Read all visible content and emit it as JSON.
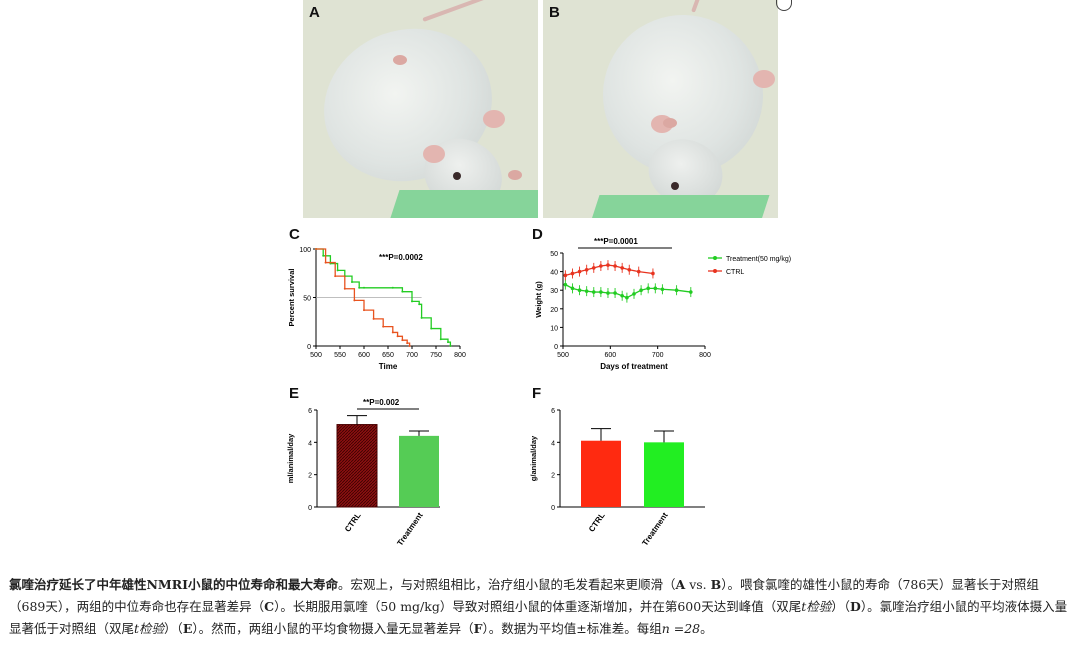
{
  "panels": {
    "A": "A",
    "B": "B",
    "C": "C",
    "D": "D",
    "E": "E",
    "F": "F"
  },
  "chart_data": [
    {
      "panel": "C",
      "type": "line",
      "xlabel": "Time",
      "ylabel": "Percent survival",
      "xlim": [
        500,
        800
      ],
      "ylim": [
        0,
        100
      ],
      "xticks": [
        500,
        550,
        600,
        650,
        700,
        750,
        800
      ],
      "yticks": [
        0,
        50,
        100
      ],
      "annotation": "***P=0.0002",
      "series": [
        {
          "color": "#22cc22",
          "x": [
            500,
            515,
            530,
            545,
            560,
            575,
            590,
            600,
            660,
            680,
            700,
            715,
            720,
            740,
            760,
            775,
            780
          ],
          "y": [
            100,
            93,
            85,
            78,
            72,
            66,
            60,
            60,
            60,
            56,
            46,
            43,
            29,
            18,
            7,
            4,
            0
          ]
        },
        {
          "color": "#e8531f",
          "x": [
            500,
            520,
            540,
            560,
            580,
            600,
            620,
            640,
            660,
            670,
            680,
            690,
            695
          ],
          "y": [
            100,
            86,
            72,
            59,
            47,
            37,
            28,
            20,
            14,
            10,
            6,
            3,
            0
          ]
        }
      ]
    },
    {
      "panel": "D",
      "type": "line",
      "xlabel": "Days of treatment",
      "ylabel": "Weight (g)",
      "xlim": [
        500,
        800
      ],
      "ylim": [
        0,
        50
      ],
      "xticks": [
        500,
        600,
        700,
        800
      ],
      "yticks": [
        0,
        10,
        20,
        30,
        40,
        50
      ],
      "annotation": "***P=0.0001",
      "legend": "top-right",
      "series": [
        {
          "name": "Treatment(50 mg/kg)",
          "color": "#22cc22",
          "x": [
            505,
            520,
            535,
            550,
            565,
            580,
            595,
            610,
            625,
            635,
            650,
            665,
            680,
            695,
            710,
            740,
            770
          ],
          "y": [
            33,
            31,
            30,
            29.5,
            29,
            29,
            28.5,
            28.5,
            27,
            26,
            28,
            30,
            31,
            31,
            30.5,
            30,
            29
          ]
        },
        {
          "name": "CTRL",
          "color": "#e8331f",
          "x": [
            505,
            520,
            535,
            550,
            565,
            580,
            595,
            610,
            625,
            640,
            660,
            690
          ],
          "y": [
            38,
            39,
            40,
            41,
            42,
            43,
            43.5,
            43,
            42,
            41,
            40,
            39
          ]
        }
      ]
    },
    {
      "panel": "E",
      "type": "bar",
      "ylabel": "ml/animal/day",
      "ylim": [
        0,
        6
      ],
      "yticks": [
        0,
        2,
        4,
        6
      ],
      "annotation": "**P=0.002",
      "categories": [
        "CTRL",
        "Treatment"
      ],
      "values": [
        5.1,
        4.4
      ],
      "errors": [
        0.55,
        0.3
      ],
      "colors": [
        "#8b1010",
        "#55cc55"
      ]
    },
    {
      "panel": "F",
      "type": "bar",
      "ylabel": "g/animal/day",
      "ylim": [
        0,
        6
      ],
      "yticks": [
        0,
        2,
        4,
        6
      ],
      "categories": [
        "CTRL",
        "Treatment"
      ],
      "values": [
        4.1,
        4.0
      ],
      "errors": [
        0.75,
        0.7
      ],
      "colors": [
        "#ff2a10",
        "#22ee22"
      ]
    }
  ],
  "caption": {
    "bold_lead": "氯喹治疗延长了中年雄性NMRI小鼠的中位寿命和最大寿命",
    "segments": [
      "。宏观上，与对照组相比，治疗组小鼠的毛发看起来更顺滑（",
      "A",
      " vs. ",
      "B",
      "）。喂食氯喹的雄性小鼠的寿命（786天）显著长于对照组（689天），两组的中位寿命也存在显著差异（",
      "C",
      "）。长期服用氯喹（50 mg/kg）导致对照组小鼠的体重逐渐增加，并在第600天达到峰值（双尾",
      "t检验",
      "）（",
      "D",
      "）。氯喹治疗组小鼠的平均液体摄入量显著低于对照组（双尾",
      "t检验",
      "）（",
      "E",
      "）。然而，两组小鼠的平均食物摄入量无显著差异（",
      "F",
      "）。数据为平均值±标准差。每组",
      "n =28",
      "。"
    ]
  }
}
